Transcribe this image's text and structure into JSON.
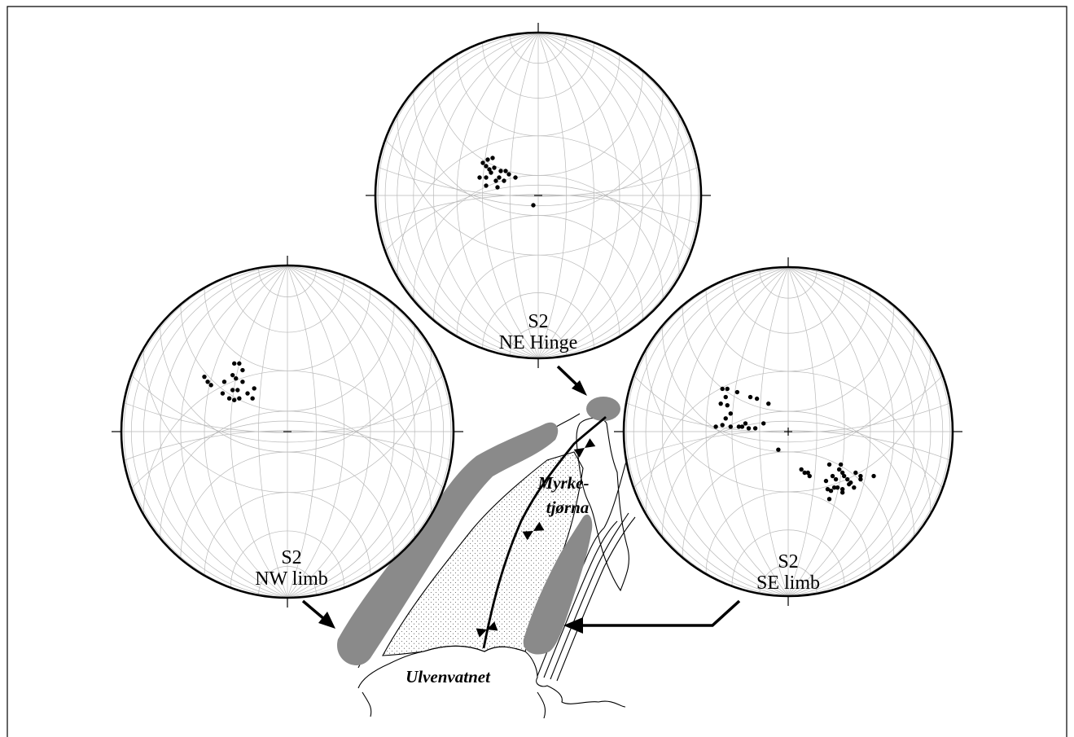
{
  "stereonets": [
    {
      "id": "ne-hinge",
      "title": "S2",
      "subtitle": "NE Hinge",
      "poles": [
        [
          -34,
          -20
        ],
        [
          -31,
          -22
        ],
        [
          -28,
          -23
        ],
        [
          -32,
          -18
        ],
        [
          -27,
          -17
        ],
        [
          -29,
          -14
        ],
        [
          -23,
          -15
        ],
        [
          -20,
          -15
        ],
        [
          -24,
          -11
        ],
        [
          -32,
          -11
        ],
        [
          -18,
          -13
        ],
        [
          -21,
          -9
        ],
        [
          -25,
          -5
        ],
        [
          -36,
          -11
        ],
        [
          -32,
          -6
        ],
        [
          -14,
          -11
        ],
        [
          -26,
          -9
        ],
        [
          -30,
          -16
        ],
        [
          -3,
          6
        ]
      ]
    },
    {
      "id": "nw-limb",
      "title": "S2",
      "subtitle": "NW limb",
      "poles": [
        [
          -50,
          -33
        ],
        [
          -48,
          -30
        ],
        [
          -46,
          -28
        ],
        [
          -38,
          -30
        ],
        [
          -32,
          -41
        ],
        [
          -29,
          -41
        ],
        [
          -27,
          -37
        ],
        [
          -33,
          -34
        ],
        [
          -31,
          -32
        ],
        [
          -27,
          -30
        ],
        [
          -33,
          -25
        ],
        [
          -30,
          -25
        ],
        [
          -39,
          -23
        ],
        [
          -35,
          -20
        ],
        [
          -32,
          -19
        ],
        [
          -29,
          -20
        ],
        [
          -24,
          -23
        ],
        [
          -20,
          -26
        ],
        [
          -21,
          -20
        ]
      ]
    },
    {
      "id": "se-limb",
      "title": "S2",
      "subtitle": "SE limb",
      "poles": [
        [
          -40,
          -26
        ],
        [
          -37,
          -26
        ],
        [
          -38,
          -21
        ],
        [
          -31,
          -24
        ],
        [
          -41,
          -17
        ],
        [
          -37,
          -16
        ],
        [
          -35,
          -11
        ],
        [
          -23,
          -21
        ],
        [
          -19,
          -20
        ],
        [
          -12,
          -17
        ],
        [
          -38,
          -8
        ],
        [
          -40,
          -4
        ],
        [
          -44,
          -3
        ],
        [
          -35,
          -3
        ],
        [
          -30,
          -3
        ],
        [
          -28,
          -3
        ],
        [
          -24,
          -2
        ],
        [
          -20,
          -2
        ],
        [
          -26,
          -5
        ],
        [
          -15,
          -5
        ],
        [
          -6,
          11
        ],
        [
          8,
          23
        ],
        [
          10,
          25
        ],
        [
          12,
          25
        ],
        [
          13,
          27
        ],
        [
          25,
          20
        ],
        [
          31,
          23
        ],
        [
          33,
          25
        ],
        [
          27,
          27
        ],
        [
          34,
          27
        ],
        [
          29,
          29
        ],
        [
          23,
          30
        ],
        [
          36,
          29
        ],
        [
          38,
          31
        ],
        [
          24,
          35
        ],
        [
          28,
          34
        ],
        [
          30,
          34
        ],
        [
          26,
          36
        ],
        [
          33,
          35
        ],
        [
          40,
          34
        ],
        [
          33,
          37
        ],
        [
          37,
          32
        ],
        [
          41,
          25
        ],
        [
          44,
          27
        ],
        [
          44,
          29
        ],
        [
          25,
          41
        ],
        [
          32,
          20
        ],
        [
          52,
          27
        ]
      ]
    }
  ],
  "map": {
    "labels": {
      "lake1": [
        "Myrke-",
        "tjørna"
      ],
      "lake2": "Ulvenvatnet"
    }
  }
}
